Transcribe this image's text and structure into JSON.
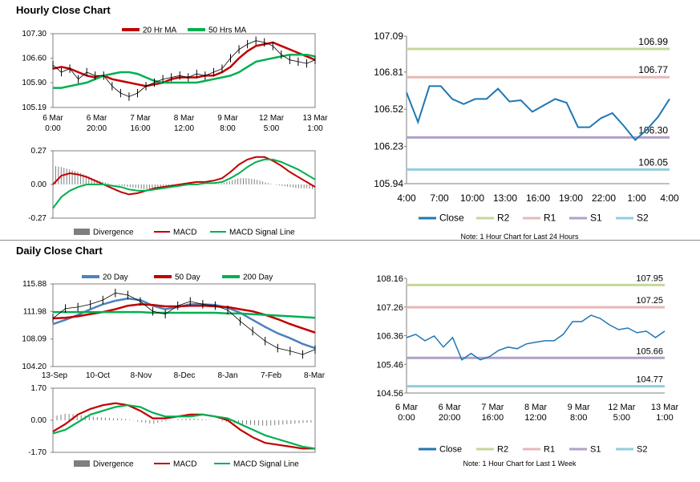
{
  "titles": {
    "hourly": "Hourly Close Chart",
    "daily": "Daily Close Chart"
  },
  "colors": {
    "ma_short": "#c00000",
    "ma_long": "#00b050",
    "ma_20day": "#4f81bd",
    "close": "#1f77b4",
    "r2": "#c4d79b",
    "r1": "#e6b8b7",
    "s1": "#b1a0c7",
    "s2": "#92cddc",
    "divergence": "#7f7f7f",
    "price": "#000000"
  },
  "chart_data": [
    {
      "id": "hourly_price",
      "type": "line",
      "x_ticks": [
        "6 Mar\n0:00",
        "6 Mar\n20:00",
        "7 Mar\n16:00",
        "8 Mar\n12:00",
        "9 Mar\n8:00",
        "12 Mar\n5:00",
        "13 Mar\n1:00"
      ],
      "y_ticks": [
        "107.30",
        "106.60",
        "105.90",
        "105.19"
      ],
      "ylim": [
        105.19,
        107.3
      ],
      "legend": [
        "20 Hr MA",
        "50 Hrs MA"
      ],
      "series": [
        {
          "name": "20 Hr MA",
          "values": [
            106.3,
            106.35,
            106.3,
            106.2,
            106.1,
            106.05,
            106.1,
            106.0,
            105.95,
            105.9,
            105.85,
            105.8,
            105.85,
            105.9,
            106.0,
            106.05,
            106.05,
            106.05,
            106.1,
            106.1,
            106.2,
            106.35,
            106.6,
            106.8,
            106.95,
            107.0,
            107.05,
            106.95,
            106.85,
            106.75,
            106.65,
            106.55
          ]
        },
        {
          "name": "50 Hrs MA",
          "values": [
            105.75,
            105.75,
            105.8,
            105.85,
            105.9,
            106.0,
            106.1,
            106.15,
            106.2,
            106.2,
            106.15,
            106.05,
            105.95,
            105.9,
            105.9,
            105.9,
            105.9,
            105.9,
            105.95,
            106.0,
            106.05,
            106.1,
            106.2,
            106.35,
            106.5,
            106.55,
            106.6,
            106.65,
            106.7,
            106.7,
            106.7,
            106.65
          ]
        },
        {
          "name": "Price",
          "values": [
            106.4,
            106.2,
            106.3,
            106.0,
            106.2,
            106.1,
            106.1,
            105.8,
            105.6,
            105.5,
            105.6,
            105.8,
            105.9,
            106.0,
            106.05,
            106.1,
            106.05,
            106.15,
            106.1,
            106.2,
            106.3,
            106.6,
            106.85,
            107.0,
            107.1,
            107.05,
            106.95,
            106.7,
            106.55,
            106.5,
            106.45,
            106.55
          ]
        }
      ]
    },
    {
      "id": "hourly_macd",
      "type": "line",
      "y_ticks": [
        "0.27",
        "0.00",
        "-0.27"
      ],
      "ylim": [
        -0.27,
        0.27
      ],
      "legend": [
        "Divergence",
        "MACD",
        "MACD Signal Line"
      ],
      "series": [
        {
          "name": "Divergence",
          "values": [
            0.15,
            0.14,
            0.12,
            0.1,
            0.07,
            0.04,
            0.02,
            0.0,
            -0.01,
            -0.02,
            -0.03,
            -0.04,
            -0.03,
            -0.02,
            -0.01,
            0.0,
            0.01,
            0.01,
            0.0,
            0.0,
            0.01,
            0.03,
            0.05,
            0.05,
            0.04,
            0.02,
            0.0,
            -0.01,
            -0.02,
            -0.03,
            -0.03,
            -0.04
          ]
        },
        {
          "name": "MACD",
          "values": [
            0.0,
            0.07,
            0.09,
            0.08,
            0.06,
            0.03,
            0.0,
            -0.03,
            -0.06,
            -0.08,
            -0.07,
            -0.05,
            -0.03,
            -0.02,
            -0.01,
            0.0,
            0.01,
            0.02,
            0.02,
            0.03,
            0.05,
            0.1,
            0.16,
            0.2,
            0.22,
            0.22,
            0.19,
            0.15,
            0.1,
            0.06,
            0.02,
            -0.02
          ]
        },
        {
          "name": "MACD Signal Line",
          "values": [
            -0.19,
            -0.1,
            -0.05,
            -0.02,
            0.0,
            0.0,
            0.0,
            -0.01,
            -0.02,
            -0.04,
            -0.05,
            -0.05,
            -0.04,
            -0.03,
            -0.02,
            -0.01,
            0.0,
            0.0,
            0.01,
            0.01,
            0.02,
            0.05,
            0.09,
            0.14,
            0.18,
            0.2,
            0.2,
            0.18,
            0.15,
            0.12,
            0.08,
            0.04
          ]
        }
      ]
    },
    {
      "id": "hourly_pivot",
      "type": "line",
      "x_ticks": [
        "4:00",
        "7:00",
        "10:00",
        "13:00",
        "16:00",
        "19:00",
        "22:00",
        "1:00",
        "4:00"
      ],
      "y_ticks": [
        "107.09",
        "106.81",
        "106.52",
        "106.23",
        "105.94"
      ],
      "ylim": [
        105.94,
        107.09
      ],
      "levels": [
        {
          "name": "R2",
          "value": 106.99,
          "label": "106.99"
        },
        {
          "name": "R1",
          "value": 106.77,
          "label": "106.77"
        },
        {
          "name": "S1",
          "value": 106.3,
          "label": "106.30"
        },
        {
          "name": "S2",
          "value": 106.05,
          "label": "106.05"
        }
      ],
      "series": [
        {
          "name": "Close",
          "values": [
            106.65,
            106.42,
            106.7,
            106.7,
            106.6,
            106.56,
            106.6,
            106.6,
            106.68,
            106.58,
            106.59,
            106.5,
            106.55,
            106.6,
            106.57,
            106.38,
            106.38,
            106.45,
            106.49,
            106.39,
            106.28,
            106.36,
            106.46,
            106.6
          ]
        }
      ],
      "legend": [
        "Close",
        "R2",
        "R1",
        "S1",
        "S2"
      ],
      "note": "Note: 1 Hour Chart for Last 24 Hours"
    },
    {
      "id": "daily_price",
      "type": "line",
      "x_ticks": [
        "13-Sep",
        "10-Oct",
        "8-Nov",
        "8-Dec",
        "8-Jan",
        "7-Feb",
        "8-Mar"
      ],
      "y_ticks": [
        "115.88",
        "111.98",
        "108.09",
        "104.20"
      ],
      "ylim": [
        104.2,
        115.88
      ],
      "legend": [
        "20 Day",
        "50 Day",
        "200 Day"
      ],
      "series": [
        {
          "name": "20 Day",
          "values": [
            110.2,
            110.8,
            111.5,
            112.3,
            113.0,
            113.5,
            113.8,
            113.6,
            112.8,
            112.3,
            112.6,
            113.0,
            113.0,
            112.9,
            112.5,
            111.8,
            110.8,
            109.8,
            108.9,
            108.2,
            107.4,
            106.8
          ]
        },
        {
          "name": "50 Day",
          "values": [
            111.0,
            111.1,
            111.3,
            111.6,
            111.9,
            112.3,
            112.8,
            113.0,
            112.9,
            112.7,
            112.7,
            112.8,
            112.8,
            112.7,
            112.6,
            112.3,
            112.0,
            111.5,
            110.9,
            110.2,
            109.6,
            109.0
          ]
        },
        {
          "name": "200 Day",
          "values": [
            111.9,
            111.9,
            111.9,
            111.9,
            111.9,
            111.9,
            111.9,
            111.9,
            111.8,
            111.8,
            111.8,
            111.8,
            111.8,
            111.8,
            111.7,
            111.7,
            111.6,
            111.5,
            111.4,
            111.3,
            111.2,
            111.1
          ]
        },
        {
          "name": "Price",
          "values": [
            111.0,
            112.4,
            112.6,
            113.0,
            113.6,
            114.6,
            114.3,
            113.4,
            112.0,
            111.6,
            112.8,
            113.4,
            113.0,
            112.8,
            112.2,
            110.6,
            109.2,
            107.8,
            106.8,
            106.4,
            105.9,
            106.6
          ]
        }
      ]
    },
    {
      "id": "daily_macd",
      "type": "line",
      "y_ticks": [
        "1.70",
        "0.00",
        "-1.70"
      ],
      "ylim": [
        -1.7,
        1.7
      ],
      "legend": [
        "Divergence",
        "MACD",
        "MACD Signal Line"
      ],
      "series": [
        {
          "name": "Divergence",
          "values": [
            0.2,
            0.35,
            0.3,
            0.2,
            0.15,
            0.1,
            0.05,
            -0.1,
            -0.2,
            -0.05,
            0.05,
            0.1,
            0.05,
            0.0,
            -0.1,
            -0.2,
            -0.25,
            -0.3,
            -0.25,
            -0.2,
            -0.15,
            -0.1
          ]
        },
        {
          "name": "MACD",
          "values": [
            -0.6,
            -0.2,
            0.3,
            0.6,
            0.8,
            0.9,
            0.8,
            0.5,
            0.1,
            0.1,
            0.2,
            0.3,
            0.3,
            0.2,
            0.0,
            -0.5,
            -0.9,
            -1.2,
            -1.3,
            -1.4,
            -1.5,
            -1.5
          ]
        },
        {
          "name": "MACD Signal Line",
          "values": [
            -0.7,
            -0.5,
            -0.1,
            0.3,
            0.5,
            0.7,
            0.8,
            0.7,
            0.4,
            0.2,
            0.2,
            0.2,
            0.3,
            0.2,
            0.1,
            -0.2,
            -0.5,
            -0.8,
            -1.0,
            -1.2,
            -1.4,
            -1.5
          ]
        }
      ]
    },
    {
      "id": "weekly_pivot",
      "type": "line",
      "x_ticks": [
        "6 Mar\n0:00",
        "6 Mar\n20:00",
        "7 Mar\n16:00",
        "8 Mar\n12:00",
        "9 Mar\n8:00",
        "12 Mar\n5:00",
        "13 Mar\n1:00"
      ],
      "y_ticks": [
        "108.16",
        "107.26",
        "106.36",
        "105.46",
        "104.56"
      ],
      "ylim": [
        104.56,
        108.16
      ],
      "levels": [
        {
          "name": "R2",
          "value": 107.95,
          "label": "107.95"
        },
        {
          "name": "R1",
          "value": 107.25,
          "label": "107.25"
        },
        {
          "name": "S1",
          "value": 105.66,
          "label": "105.66"
        },
        {
          "name": "S2",
          "value": 104.77,
          "label": "104.77"
        }
      ],
      "series": [
        {
          "name": "Close",
          "values": [
            106.3,
            106.4,
            106.2,
            106.35,
            106.0,
            106.3,
            105.6,
            105.8,
            105.6,
            105.7,
            105.9,
            106.0,
            105.95,
            106.1,
            106.15,
            106.2,
            106.2,
            106.4,
            106.8,
            106.8,
            107.0,
            106.9,
            106.7,
            106.55,
            106.6,
            106.45,
            106.5,
            106.3,
            106.5
          ]
        }
      ],
      "legend": [
        "Close",
        "R2",
        "R1",
        "S1",
        "S2"
      ],
      "note": "Note: 1 Hour Chart for Last 1 Week"
    }
  ]
}
